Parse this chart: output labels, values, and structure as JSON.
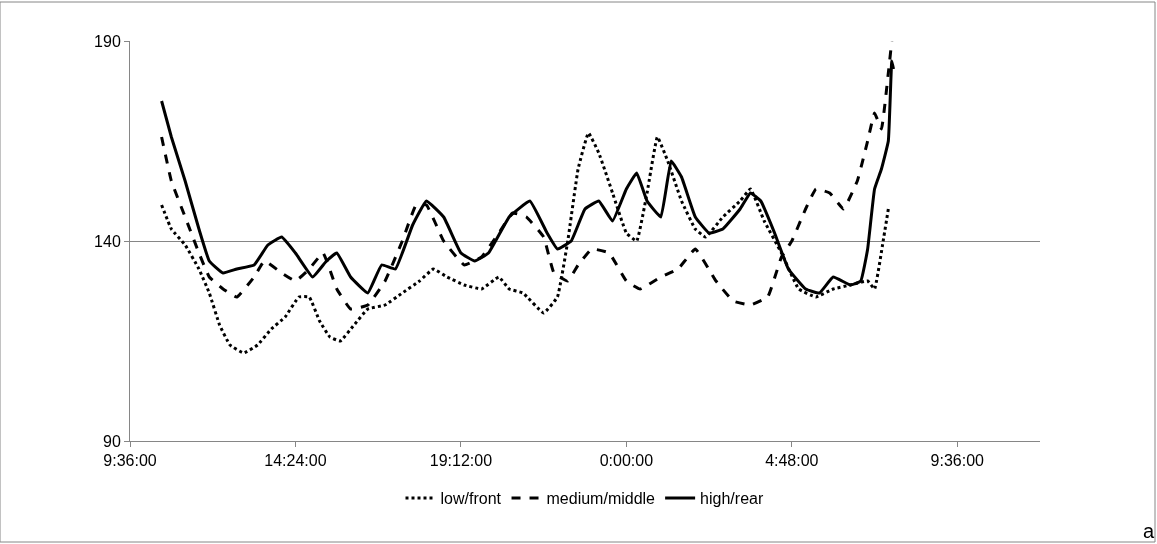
{
  "chart_data": {
    "type": "line",
    "xlim": [
      "--01-01T09:36",
      "--01-02T12:00"
    ],
    "xticks": [
      {
        "value": "--01-01T09:36",
        "label": "9:36:00"
      },
      {
        "value": "--01-01T14:24",
        "label": "14:24:00"
      },
      {
        "value": "--01-01T19:12",
        "label": "19:12:00"
      },
      {
        "value": "--01-02T00:00",
        "label": "0:00:00"
      },
      {
        "value": "--01-02T04:48",
        "label": "4:48:00"
      },
      {
        "value": "--01-02T09:36",
        "label": "9:36:00"
      }
    ],
    "ylim": [
      90,
      190
    ],
    "yticks": [
      90,
      140,
      190
    ],
    "grid": "y",
    "legend": "bottom",
    "marker": "none",
    "annotations": [
      "a"
    ],
    "series": [
      {
        "name": "low/front",
        "color": "#000000",
        "line_style": "dotted",
        "x": [
          "--01-01T10:31",
          "--01-01T10:48",
          "--01-01T11:12",
          "--01-01T11:36",
          "--01-01T11:54",
          "--01-01T12:12",
          "--01-01T12:30",
          "--01-01T12:54",
          "--01-01T13:18",
          "--01-01T13:42",
          "--01-01T14:06",
          "--01-01T14:30",
          "--01-01T14:48",
          "--01-01T15:06",
          "--01-01T15:24",
          "--01-01T15:42",
          "--01-01T16:06",
          "--01-01T16:30",
          "--01-01T17:00",
          "--01-01T17:30",
          "--01-01T18:00",
          "--01-01T18:24",
          "--01-01T18:48",
          "--01-01T19:18",
          "--01-01T19:48",
          "--01-01T20:18",
          "--01-01T20:36",
          "--01-01T21:00",
          "--01-01T21:36",
          "--01-01T22:00",
          "--01-01T22:18",
          "--01-01T22:36",
          "--01-01T22:54",
          "--01-01T23:12",
          "--01-01T23:36",
          "--01-02T00:00",
          "--01-02T00:18",
          "--01-02T00:36",
          "--01-02T00:54",
          "--01-02T01:12",
          "--01-02T01:36",
          "--01-02T02:00",
          "--01-02T02:18",
          "--01-02T02:48",
          "--01-02T03:18",
          "--01-02T03:36",
          "--01-02T04:00",
          "--01-02T04:30",
          "--01-02T05:00",
          "--01-02T05:30",
          "--01-02T06:00",
          "--01-02T06:30",
          "--01-02T07:00",
          "--01-02T07:12",
          "--01-02T07:27",
          "--01-02T07:36"
        ],
        "values": [
          149,
          143,
          139,
          133,
          127,
          119,
          114,
          112,
          114,
          118,
          121,
          126,
          126,
          120,
          116,
          115,
          119,
          123,
          124,
          127,
          130,
          133,
          131,
          129,
          128,
          131,
          128,
          127,
          122,
          126,
          140,
          158,
          167,
          162,
          152,
          142,
          140,
          152,
          166,
          160,
          150,
          143,
          141,
          146,
          150,
          153,
          145,
          137,
          128,
          126,
          128,
          129,
          130,
          128,
          140,
          148
        ]
      },
      {
        "name": "medium/middle",
        "color": "#000000",
        "line_style": "dashed",
        "x": [
          "--01-01T10:31",
          "--01-01T10:48",
          "--01-01T11:12",
          "--01-01T11:36",
          "--01-01T11:54",
          "--01-01T12:18",
          "--01-01T12:42",
          "--01-01T13:12",
          "--01-01T13:30",
          "--01-01T14:00",
          "--01-01T14:24",
          "--01-01T14:48",
          "--01-01T15:12",
          "--01-01T15:36",
          "--01-01T16:00",
          "--01-01T16:30",
          "--01-01T17:00",
          "--01-01T17:30",
          "--01-01T17:54",
          "--01-01T18:12",
          "--01-01T18:42",
          "--01-01T19:18",
          "--01-01T19:48",
          "--01-01T20:18",
          "--01-01T20:42",
          "--01-01T21:06",
          "--01-01T21:36",
          "--01-01T21:54",
          "--01-01T22:18",
          "--01-01T22:36",
          "--01-01T23:00",
          "--01-01T23:30",
          "--01-02T00:00",
          "--01-02T00:24",
          "--01-02T01:00",
          "--01-02T01:30",
          "--01-02T02:00",
          "--01-02T02:36",
          "--01-02T03:06",
          "--01-02T03:36",
          "--01-02T04:06",
          "--01-02T04:30",
          "--01-02T04:48",
          "--01-02T05:12",
          "--01-02T05:30",
          "--01-02T05:54",
          "--01-02T06:18",
          "--01-02T06:42",
          "--01-02T07:00",
          "--01-02T07:12",
          "--01-02T07:24",
          "--01-02T07:36",
          "--01-02T07:42"
        ],
        "values": [
          166,
          155,
          146,
          137,
          131,
          128,
          126,
          131,
          135,
          132,
          130,
          133,
          137,
          128,
          123,
          124,
          130,
          140,
          149,
          149,
          140,
          134,
          136,
          142,
          147,
          146,
          141,
          132,
          130,
          134,
          138,
          137,
          130,
          128,
          131,
          133,
          138,
          130,
          125,
          124,
          126,
          136,
          140,
          148,
          153,
          152,
          148,
          155,
          165,
          172,
          168,
          182,
          190
        ]
      },
      {
        "name": "high/rear",
        "color": "#000000",
        "line_style": "solid",
        "x": [
          "--01-01T10:31",
          "--01-01T10:48",
          "--01-01T11:12",
          "--01-01T11:36",
          "--01-01T11:54",
          "--01-01T12:18",
          "--01-01T12:42",
          "--01-01T13:12",
          "--01-01T13:36",
          "--01-01T14:00",
          "--01-01T14:24",
          "--01-01T14:54",
          "--01-01T15:18",
          "--01-01T15:36",
          "--01-01T16:00",
          "--01-01T16:30",
          "--01-01T16:54",
          "--01-01T17:18",
          "--01-01T17:48",
          "--01-01T18:12",
          "--01-01T18:42",
          "--01-01T19:12",
          "--01-01T19:36",
          "--01-01T20:00",
          "--01-01T20:36",
          "--01-01T21:12",
          "--01-01T21:42",
          "--01-01T22:00",
          "--01-01T22:24",
          "--01-01T22:48",
          "--01-01T23:12",
          "--01-01T23:36",
          "--01-02T00:00",
          "--01-02T00:18",
          "--01-02T00:36",
          "--01-02T01:00",
          "--01-02T01:18",
          "--01-02T01:36",
          "--01-02T02:00",
          "--01-02T02:24",
          "--01-02T02:48",
          "--01-02T03:18",
          "--01-02T03:36",
          "--01-02T03:54",
          "--01-02T04:18",
          "--01-02T04:42",
          "--01-02T05:12",
          "--01-02T05:36",
          "--01-02T06:00",
          "--01-02T06:30",
          "--01-02T06:48",
          "--01-02T07:00",
          "--01-02T07:12",
          "--01-02T07:24",
          "--01-02T07:36",
          "--01-02T07:42",
          "--01-02T07:45"
        ],
        "values": [
          175,
          166,
          155,
          143,
          135,
          132,
          133,
          134,
          139,
          141,
          137,
          131,
          135,
          137,
          131,
          127,
          134,
          133,
          144,
          150,
          146,
          137,
          135,
          137,
          146,
          150,
          142,
          138,
          140,
          148,
          150,
          145,
          153,
          157,
          150,
          146,
          160,
          156,
          146,
          142,
          143,
          148,
          152,
          150,
          142,
          133,
          128,
          127,
          131,
          129,
          130,
          138,
          153,
          158,
          165,
          185,
          183
        ]
      }
    ]
  }
}
